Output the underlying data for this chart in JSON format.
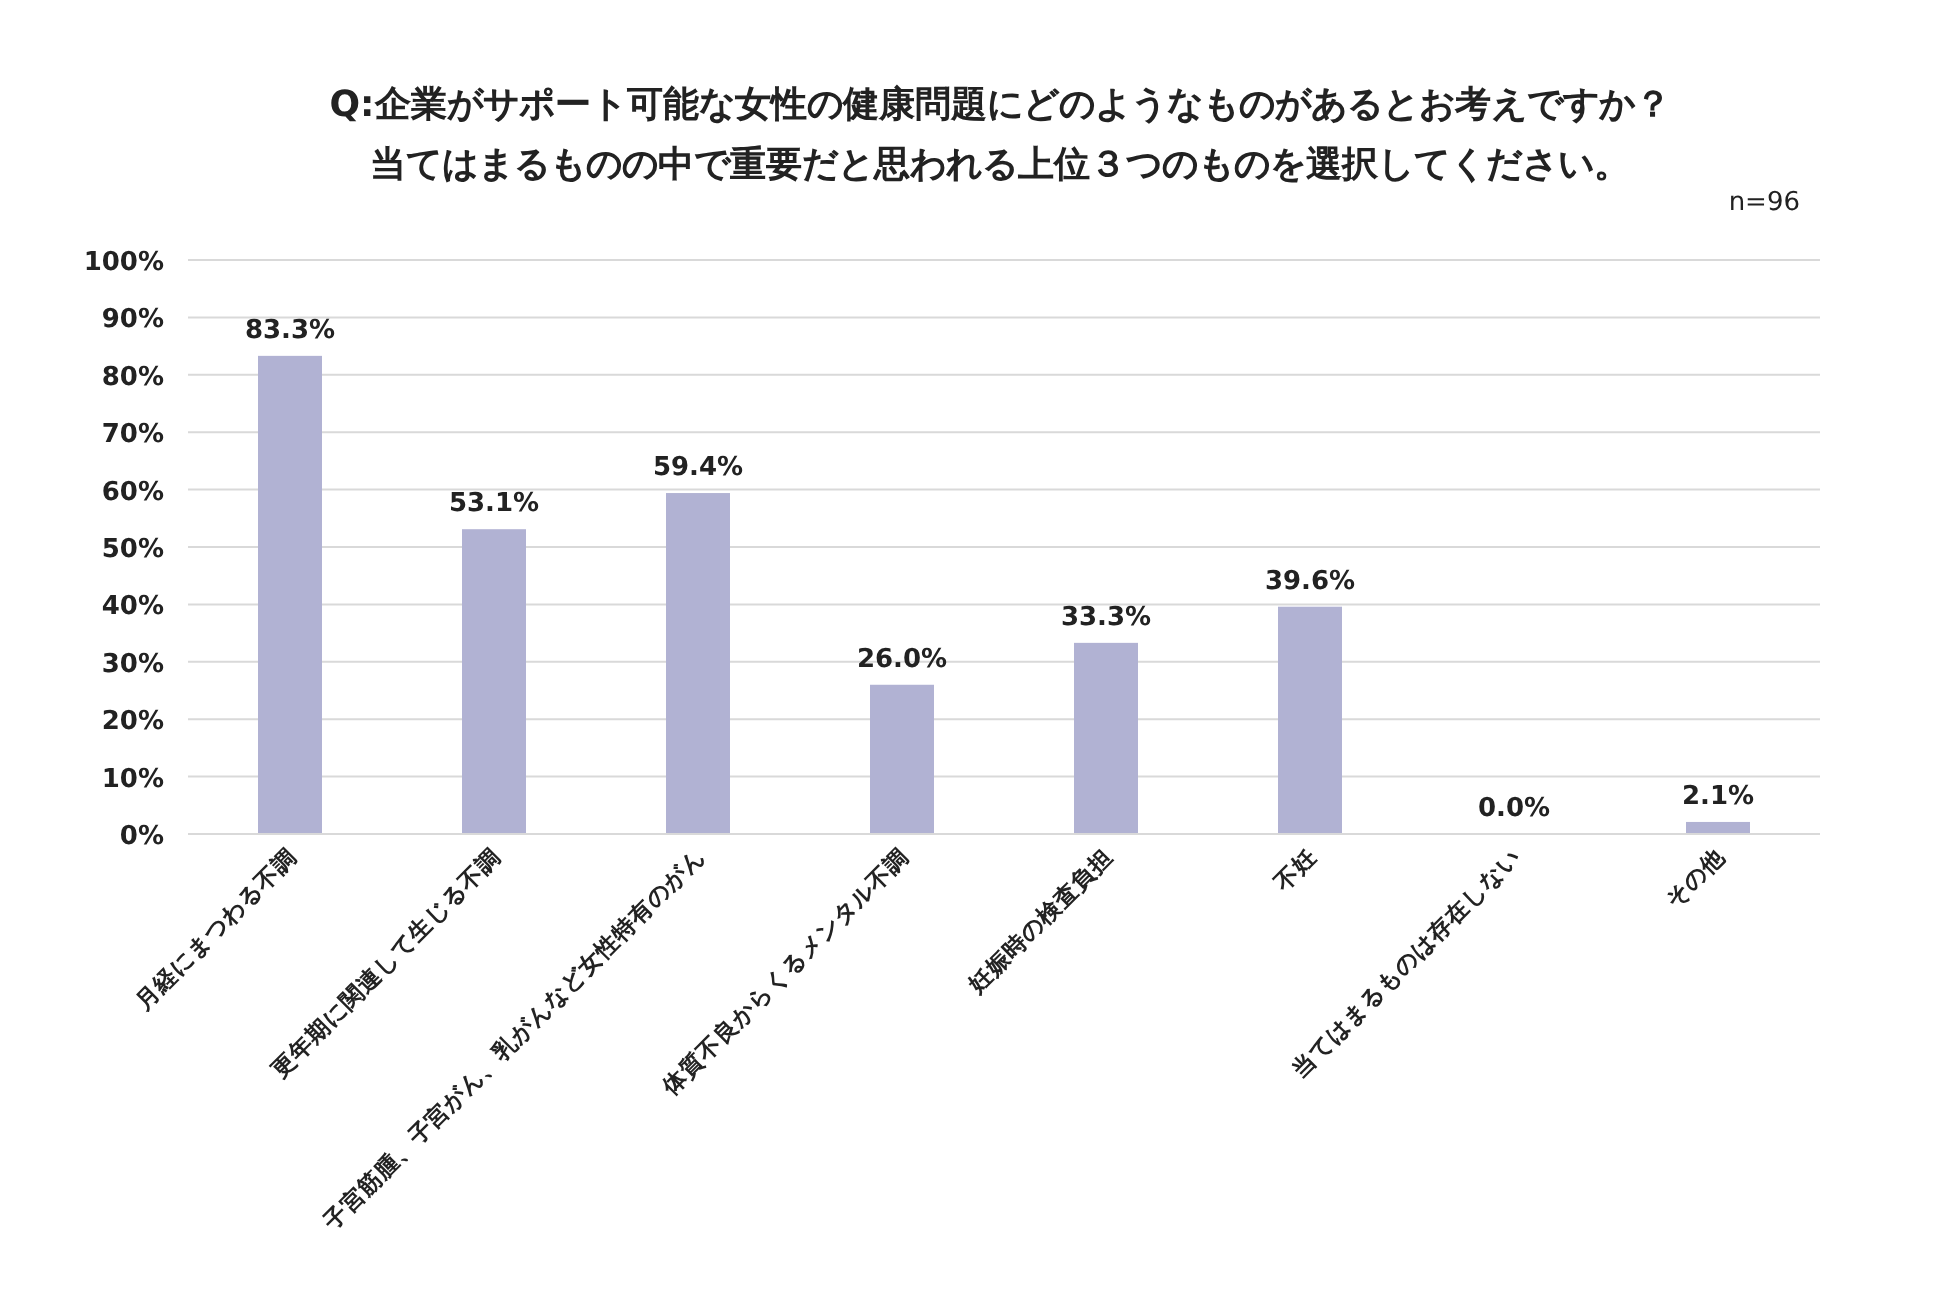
{
  "chart_data": {
    "type": "bar",
    "title": "Q:企業がサポート可能な女性の健康問題にどのようなものがあるとお考えですか？",
    "subtitle": "当てはまるものの中で重要だと思われる上位３つのものを選択してください。",
    "annotations": [
      "n=96"
    ],
    "categories": [
      "月経にまつわる不調",
      "更年期に関連して生じる不調",
      "子宮筋腫、子宮がん、乳がんなど女性特有のがん",
      "体質不良からくるメンタル不調",
      "妊娠時の検査負担",
      "不妊",
      "当てはまるものは存在しない",
      "その他"
    ],
    "values": [
      83.3,
      53.1,
      59.4,
      26.0,
      33.3,
      39.6,
      0.0,
      2.1
    ],
    "value_labels": [
      "83.3%",
      "53.1%",
      "59.4%",
      "26.0%",
      "33.3%",
      "39.6%",
      "0.0%",
      "2.1%"
    ],
    "color": "#b1b2d3",
    "ylim": [
      0,
      100
    ],
    "yticks": [
      {
        "value": 0,
        "label": "0%"
      },
      {
        "value": 10,
        "label": "10%"
      },
      {
        "value": 20,
        "label": "20%"
      },
      {
        "value": 30,
        "label": "30%"
      },
      {
        "value": 40,
        "label": "40%"
      },
      {
        "value": 50,
        "label": "50%"
      },
      {
        "value": 60,
        "label": "60%"
      },
      {
        "value": 70,
        "label": "70%"
      },
      {
        "value": 80,
        "label": "80%"
      },
      {
        "value": 90,
        "label": "90%"
      },
      {
        "value": 100,
        "label": "100%"
      }
    ],
    "grid": "y"
  }
}
